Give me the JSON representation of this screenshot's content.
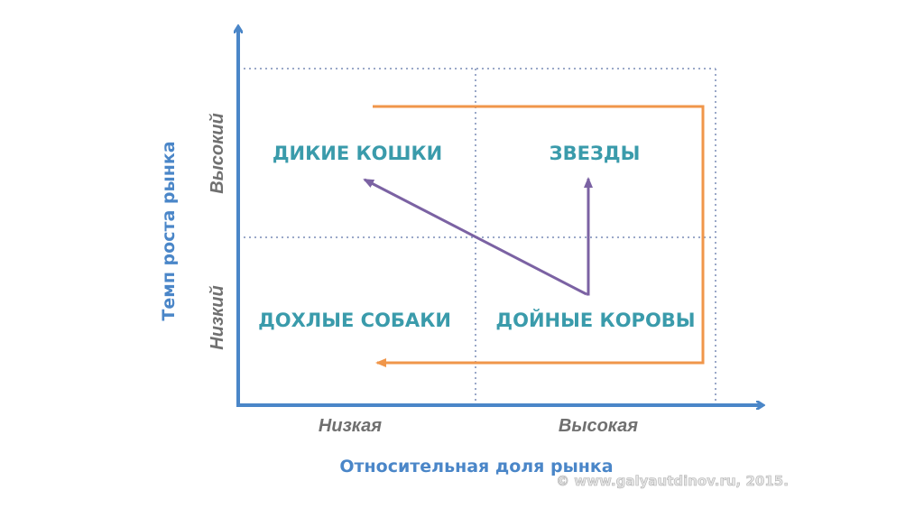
{
  "diagram": {
    "y_axis_title": "Темп роста рынка",
    "x_axis_title": "Относительная доля рынка",
    "y_levels": {
      "high": "Высокий",
      "low": "Низкий"
    },
    "x_levels": {
      "low": "Низкая",
      "high": "Высокая"
    },
    "quadrants": {
      "top_left": "ДИКИЕ КОШКИ",
      "top_right": "ЗВЕЗДЫ",
      "bottom_left": "ДОХЛЫЕ СОБАКИ",
      "bottom_right": "ДОЙНЫЕ КОРОВЫ"
    },
    "watermark": "© www.galyautdinov.ru, 2015.",
    "colors": {
      "axis": "#4a86c8",
      "grid": "#9aa8c8",
      "cash_flow_arrow": "#f0964a",
      "investment_arrow": "#7b62a3",
      "quadrant_text": "#3a9bab"
    }
  }
}
